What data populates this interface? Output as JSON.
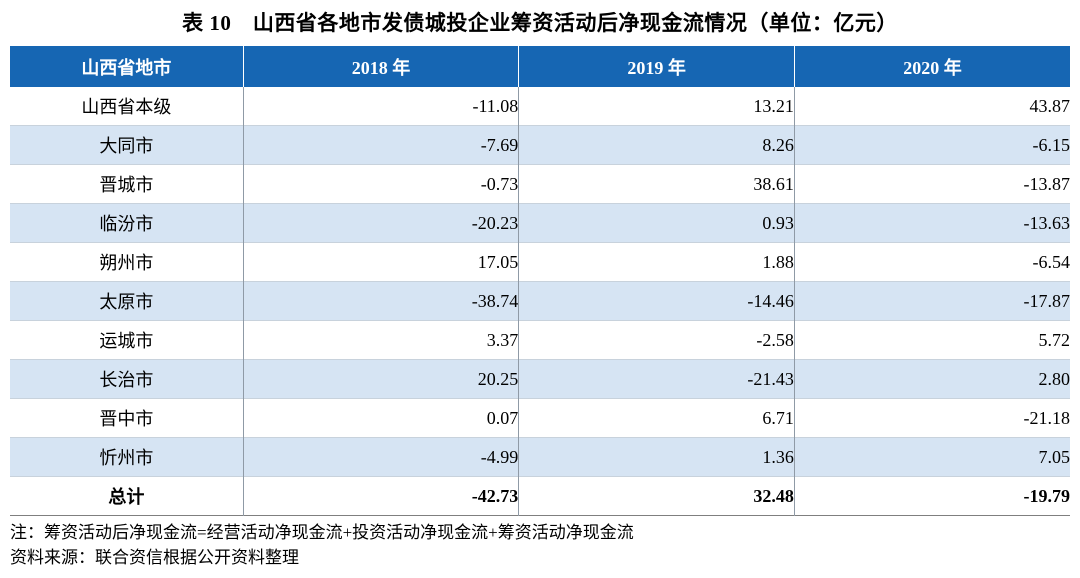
{
  "title": "表 10　山西省各地市发债城投企业筹资活动后净现金流情况（单位：亿元）",
  "colors": {
    "header_bg": "#1666B3",
    "alt_row_bg": "#D6E4F3",
    "header_text": "#FFFFFF"
  },
  "table": {
    "headers": {
      "region": "山西省地市",
      "y2018": "2018 年",
      "y2019": "2019 年",
      "y2020": "2020 年"
    },
    "rows": [
      {
        "region": "山西省本级",
        "v2018": "-11.08",
        "v2019": "13.21",
        "v2020": "43.87"
      },
      {
        "region": "大同市",
        "v2018": "-7.69",
        "v2019": "8.26",
        "v2020": "-6.15"
      },
      {
        "region": "晋城市",
        "v2018": "-0.73",
        "v2019": "38.61",
        "v2020": "-13.87"
      },
      {
        "region": "临汾市",
        "v2018": "-20.23",
        "v2019": "0.93",
        "v2020": "-13.63"
      },
      {
        "region": "朔州市",
        "v2018": "17.05",
        "v2019": "1.88",
        "v2020": "-6.54"
      },
      {
        "region": "太原市",
        "v2018": "-38.74",
        "v2019": "-14.46",
        "v2020": "-17.87"
      },
      {
        "region": "运城市",
        "v2018": "3.37",
        "v2019": "-2.58",
        "v2020": "5.72"
      },
      {
        "region": "长治市",
        "v2018": "20.25",
        "v2019": "-21.43",
        "v2020": "2.80"
      },
      {
        "region": "晋中市",
        "v2018": "0.07",
        "v2019": "6.71",
        "v2020": "-21.18"
      },
      {
        "region": "忻州市",
        "v2018": "-4.99",
        "v2019": "1.36",
        "v2020": "7.05"
      }
    ],
    "total": {
      "region": "总计",
      "v2018": "-42.73",
      "v2019": "32.48",
      "v2020": "-19.79"
    }
  },
  "notes": [
    "注：筹资活动后净现金流=经营活动净现金流+投资活动净现金流+筹资活动净现金流",
    "资料来源：联合资信根据公开资料整理"
  ]
}
